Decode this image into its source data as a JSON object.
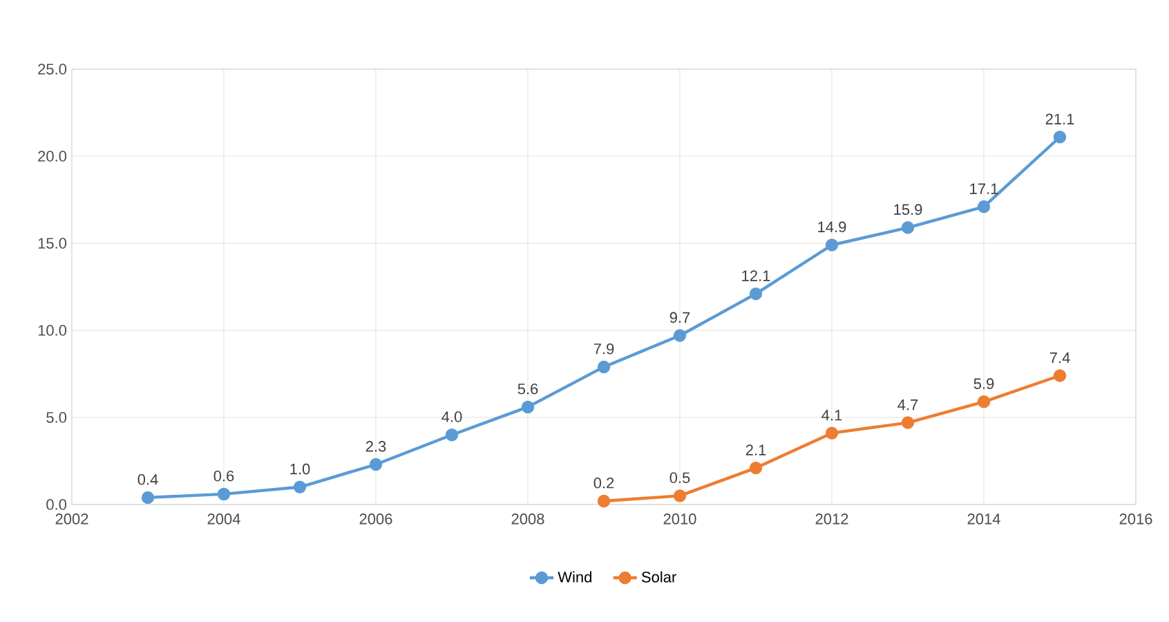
{
  "chart_data": {
    "type": "line",
    "series": [
      {
        "name": "Wind",
        "color": "#5b9bd5",
        "x": [
          2003,
          2004,
          2005,
          2006,
          2007,
          2008,
          2009,
          2010,
          2011,
          2012,
          2013,
          2014,
          2015
        ],
        "values": [
          0.4,
          0.6,
          1.0,
          2.3,
          4.0,
          5.6,
          7.9,
          9.7,
          12.1,
          14.9,
          15.9,
          17.1,
          21.1
        ],
        "value_labels": [
          "0.4",
          "0.6",
          "1.0",
          "2.3",
          "4.0",
          "5.6",
          "7.9",
          "9.7",
          "12.1",
          "14.9",
          "15.9",
          "17.1",
          "21.1"
        ]
      },
      {
        "name": "Solar",
        "color": "#ed7d31",
        "x": [
          2009,
          2010,
          2011,
          2012,
          2013,
          2014,
          2015
        ],
        "values": [
          0.2,
          0.5,
          2.1,
          4.1,
          4.7,
          5.9,
          7.4
        ],
        "value_labels": [
          "0.2",
          "0.5",
          "2.1",
          "4.1",
          "4.7",
          "5.9",
          "7.4"
        ]
      }
    ],
    "xlim": [
      2002,
      2016
    ],
    "xticks": [
      2002,
      2004,
      2006,
      2008,
      2010,
      2012,
      2014,
      2016
    ],
    "ylim": [
      0,
      25
    ],
    "yticks": [
      {
        "value": 0,
        "label": "0.0"
      },
      {
        "value": 5,
        "label": "5.0"
      },
      {
        "value": 10,
        "label": "10.0"
      },
      {
        "value": 15,
        "label": "15.0"
      },
      {
        "value": 20,
        "label": "20.0"
      },
      {
        "value": 25,
        "label": "25.0"
      }
    ],
    "grid": true,
    "legend": "bottom",
    "marker": "circle",
    "line_style": "solid"
  }
}
